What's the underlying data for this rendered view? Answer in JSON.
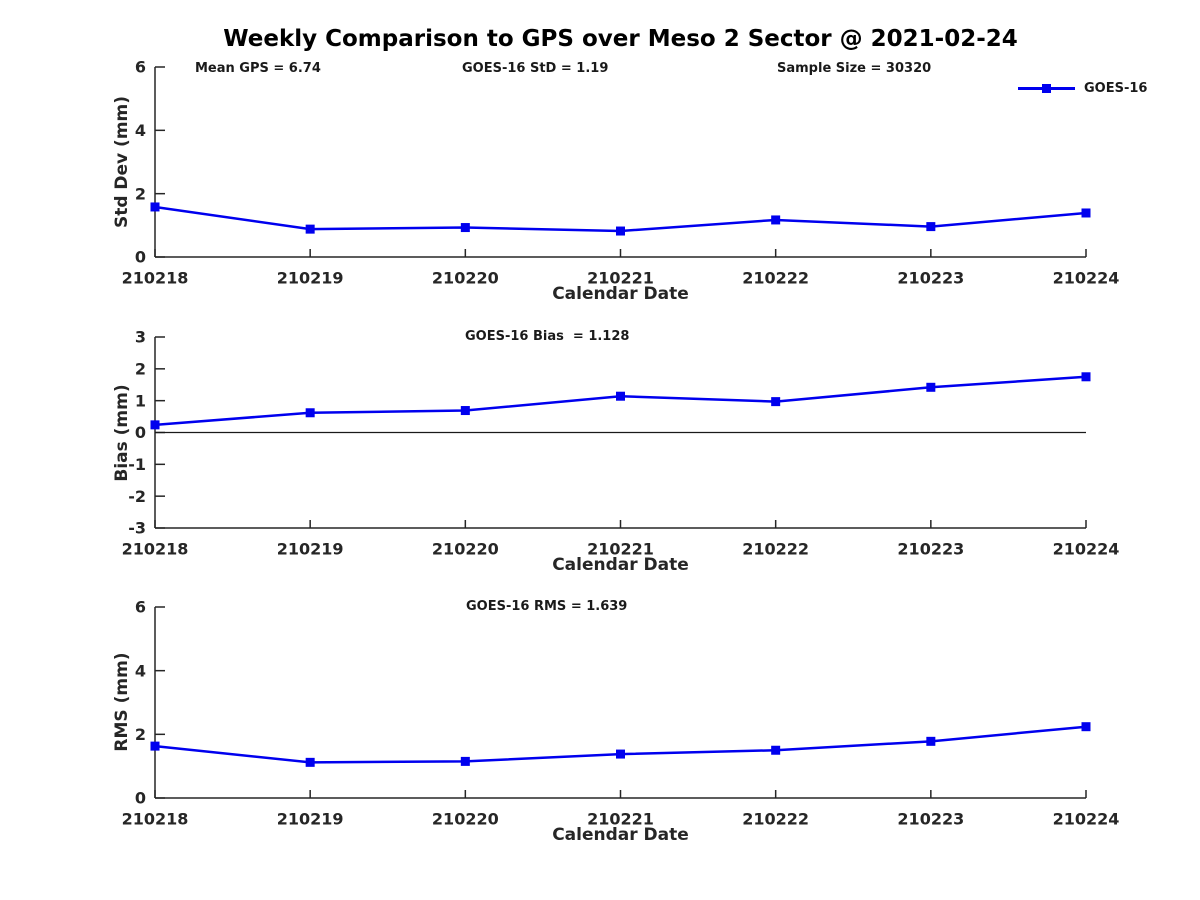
{
  "page": {
    "title": "Weekly Comparison to GPS over Meso 2 Sector @ 2021-02-24",
    "header_annotations": {
      "mean_gps": "Mean GPS = 6.74",
      "goes_std": "GOES-16 StD = 1.19",
      "sample_size": "Sample Size = 30320"
    },
    "legend": {
      "label": "GOES-16",
      "position": "top-right"
    },
    "colors": {
      "series": "#0000EE",
      "axis": "#262626",
      "text": "#1a1a1a",
      "zero_line": "#1a1a1a",
      "background": "#ffffff"
    }
  },
  "chart_data": [
    {
      "id": "stddev",
      "type": "line",
      "categories": [
        "210218",
        "210219",
        "210220",
        "210221",
        "210222",
        "210223",
        "210224"
      ],
      "series": [
        {
          "name": "GOES-16",
          "values": [
            1.58,
            0.88,
            0.93,
            0.82,
            1.17,
            0.96,
            1.39
          ]
        }
      ],
      "xlabel": "Calendar Date",
      "ylabel": "Std Dev (mm)",
      "ylim": [
        0,
        6
      ],
      "yticks": [
        0,
        2,
        4,
        6
      ],
      "annotation": "",
      "zero_line": false,
      "marker": "square",
      "grid": false,
      "legend_position": "top-right"
    },
    {
      "id": "bias",
      "type": "line",
      "categories": [
        "210218",
        "210219",
        "210220",
        "210221",
        "210222",
        "210223",
        "210224"
      ],
      "series": [
        {
          "name": "GOES-16",
          "values": [
            0.24,
            0.62,
            0.69,
            1.14,
            0.97,
            1.42,
            1.75
          ]
        }
      ],
      "xlabel": "Calendar Date",
      "ylabel": "Bias (mm)",
      "ylim": [
        -3,
        3
      ],
      "yticks": [
        -3,
        -2,
        -1,
        0,
        1,
        2,
        3
      ],
      "annotation": "GOES-16 Bias  = 1.128",
      "zero_line": true,
      "marker": "square",
      "grid": false,
      "legend_position": "none"
    },
    {
      "id": "rms",
      "type": "line",
      "categories": [
        "210218",
        "210219",
        "210220",
        "210221",
        "210222",
        "210223",
        "210224"
      ],
      "series": [
        {
          "name": "GOES-16",
          "values": [
            1.63,
            1.12,
            1.15,
            1.38,
            1.5,
            1.78,
            2.24
          ]
        }
      ],
      "xlabel": "Calendar Date",
      "ylabel": "RMS (mm)",
      "ylim": [
        0,
        6
      ],
      "yticks": [
        0,
        2,
        4,
        6
      ],
      "annotation": "GOES-16 RMS = 1.639",
      "zero_line": false,
      "marker": "square",
      "grid": false,
      "legend_position": "none"
    }
  ]
}
